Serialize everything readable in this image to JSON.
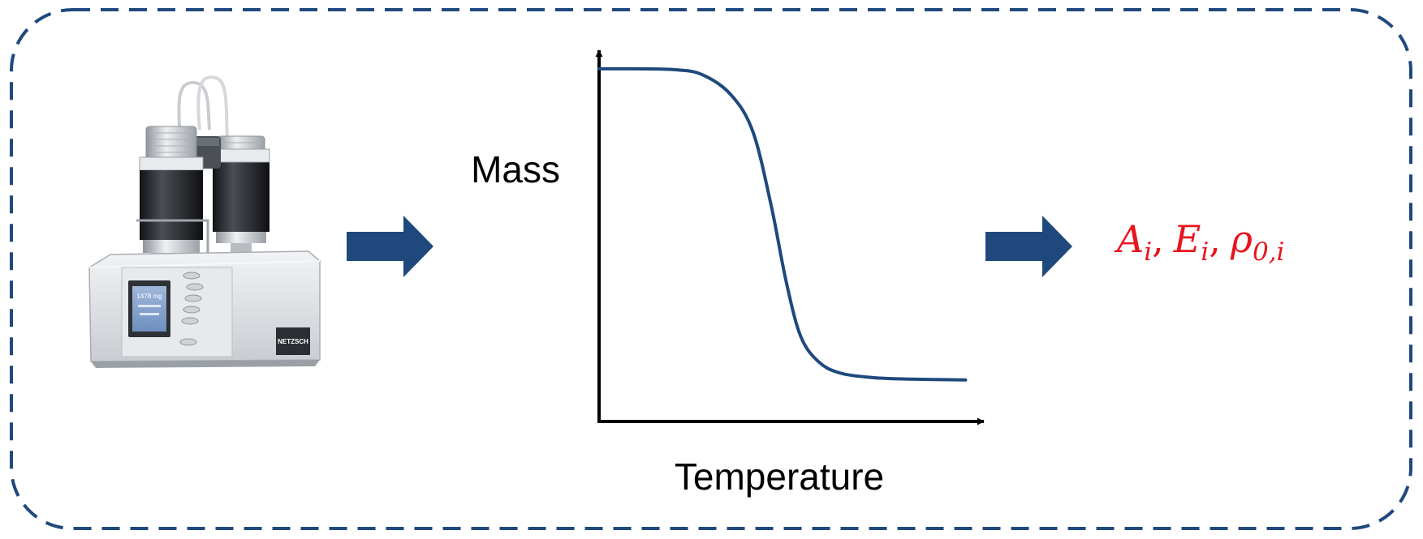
{
  "colors": {
    "frame": "#1f497d",
    "arrow": "#1f497d",
    "curve": "#1f497d",
    "axes": "#000000",
    "params": "#e8141c",
    "instrument_body": "#dcdfe3",
    "instrument_dark": "#2b2e33"
  },
  "icons": {
    "instrument": "thermogravimetric-analyzer-icon",
    "flow_arrow": "right-block-arrow-icon"
  },
  "instrument": {
    "screen_lines": [
      "1478 mg",
      "",
      ""
    ],
    "brand": "NETZSCH"
  },
  "chart_data": {
    "type": "line",
    "xlabel": "Temperature",
    "ylabel": "Mass",
    "series": [
      {
        "values": [
          [
            0.0,
            0.95
          ],
          [
            0.1,
            0.95
          ],
          [
            0.2,
            0.948
          ],
          [
            0.28,
            0.935
          ],
          [
            0.36,
            0.88
          ],
          [
            0.42,
            0.78
          ],
          [
            0.47,
            0.58
          ],
          [
            0.51,
            0.38
          ],
          [
            0.55,
            0.23
          ],
          [
            0.6,
            0.16
          ],
          [
            0.66,
            0.13
          ],
          [
            0.75,
            0.118
          ],
          [
            0.85,
            0.114
          ],
          [
            1.0,
            0.112
          ]
        ]
      }
    ],
    "xlim": [
      0,
      1.05
    ],
    "ylim": [
      0,
      1.0
    ],
    "grid": false,
    "ticks": false
  },
  "result": {
    "parts": [
      {
        "base": "A",
        "sub": "i",
        "sep": ","
      },
      {
        "base": "E",
        "sub": "i",
        "sep": ","
      },
      {
        "base": "ρ",
        "sub": "0,i",
        "sep": ""
      }
    ]
  }
}
